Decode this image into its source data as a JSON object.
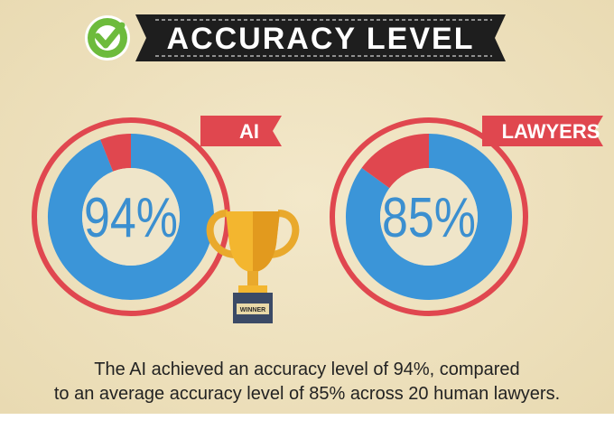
{
  "header": {
    "title": "ACCURACY LEVEL"
  },
  "chart_data": [
    {
      "type": "donut",
      "title": "AI",
      "values": [
        94,
        6
      ],
      "value_labels": [
        "94%",
        null
      ],
      "colors": [
        "#3b95d8",
        "#e0474f"
      ]
    },
    {
      "type": "donut",
      "title": "LAWYERS",
      "values": [
        85,
        15
      ],
      "value_labels": [
        "85%",
        null
      ],
      "colors": [
        "#3b95d8",
        "#e0474f"
      ]
    }
  ],
  "trophy_label": "WINNER",
  "caption": [
    "The AI achieved an accuracy level of 94%, compared",
    "to an average accuracy level of 85% across 20 human lawyers."
  ]
}
